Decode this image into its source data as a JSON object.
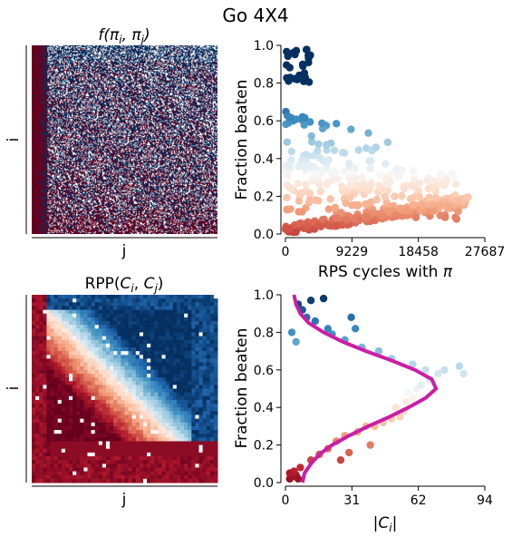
{
  "figure": {
    "title": "Go 4X4"
  },
  "palette": {
    "red": "#67001f",
    "blue": "#053061",
    "fit_curve": "#cc1da6",
    "mid": "#f7f7f7"
  },
  "chart_data": [
    {
      "id": "heatmap-f",
      "type": "heatmap",
      "title": "f(π_i, π_j)",
      "title_main": "f(",
      "title_a": "π",
      "title_a_sub": "i",
      "title_sep": ", ",
      "title_b": "π",
      "title_b_sub": "j",
      "title_end": ")",
      "xlabel": "j",
      "ylabel": "i",
      "grid_size": 200,
      "description_values": "binary win/loss matrix, red = loss, blue = win"
    },
    {
      "id": "scatter-rps",
      "type": "scatter",
      "xlabel": "RPS cycles with π",
      "xlabel_text": "RPS cycles with ",
      "xlabel_pi": "π",
      "ylabel": "Fraction beaten",
      "xlim": [
        0,
        27687
      ],
      "ylim": [
        0,
        1.0
      ],
      "xticks": [
        "0",
        "9229",
        "18458",
        "27687"
      ],
      "yticks": [
        "0.0",
        "0.2",
        "0.4",
        "0.6",
        "0.8",
        "1.0"
      ],
      "color_by": "fraction beaten",
      "n_points": 520
    },
    {
      "id": "heatmap-rpp",
      "type": "heatmap",
      "title": "RPP(C_i, C_j)",
      "title_main": "RPP(",
      "title_a": "C",
      "title_a_sub": "i",
      "title_sep": ", ",
      "title_b": "C",
      "title_b_sub": "j",
      "title_end": ")",
      "xlabel": "j",
      "ylabel": "i",
      "grid_size": 50
    },
    {
      "id": "scatter-ci",
      "type": "scatter",
      "xlabel": "|C_i|",
      "xlabel_text": "|C",
      "xlabel_sub": "i",
      "xlabel_end": "|",
      "ylabel": "Fraction beaten",
      "xlim": [
        0,
        94
      ],
      "ylim": [
        0,
        1.0
      ],
      "xticks": [
        "0",
        "31",
        "62",
        "94"
      ],
      "yticks": [
        "0.0",
        "0.2",
        "0.4",
        "0.6",
        "0.8",
        "1.0"
      ],
      "fit_curve": {
        "y": [
          0.0,
          0.05,
          0.1,
          0.15,
          0.2,
          0.25,
          0.3,
          0.35,
          0.4,
          0.45,
          0.5,
          0.55,
          0.6,
          0.65,
          0.7,
          0.75,
          0.8,
          0.85,
          0.9,
          0.95,
          1.0
        ],
        "x": [
          8,
          9,
          12,
          16,
          22,
          30,
          39,
          49,
          58,
          66,
          71,
          69,
          61,
          50,
          38,
          27,
          18,
          11,
          7,
          5,
          4
        ]
      },
      "points": [
        {
          "x": 2,
          "y": 0.02
        },
        {
          "x": 3,
          "y": 0.03
        },
        {
          "x": 5,
          "y": 0.04
        },
        {
          "x": 4,
          "y": 0.06
        },
        {
          "x": 2,
          "y": 0.05
        },
        {
          "x": 6,
          "y": 0.02
        },
        {
          "x": 7,
          "y": 0.08
        },
        {
          "x": 12,
          "y": 0.12
        },
        {
          "x": 16,
          "y": 0.15
        },
        {
          "x": 20,
          "y": 0.18
        },
        {
          "x": 24,
          "y": 0.22
        },
        {
          "x": 28,
          "y": 0.25
        },
        {
          "x": 34,
          "y": 0.27
        },
        {
          "x": 38,
          "y": 0.3
        },
        {
          "x": 42,
          "y": 0.3
        },
        {
          "x": 46,
          "y": 0.32
        },
        {
          "x": 50,
          "y": 0.34
        },
        {
          "x": 54,
          "y": 0.35
        },
        {
          "x": 56,
          "y": 0.38
        },
        {
          "x": 52,
          "y": 0.4
        },
        {
          "x": 57,
          "y": 0.43
        },
        {
          "x": 60,
          "y": 0.45
        },
        {
          "x": 62,
          "y": 0.5
        },
        {
          "x": 58,
          "y": 0.48
        },
        {
          "x": 64,
          "y": 0.52
        },
        {
          "x": 68,
          "y": 0.55
        },
        {
          "x": 72,
          "y": 0.58
        },
        {
          "x": 75,
          "y": 0.6
        },
        {
          "x": 82,
          "y": 0.62
        },
        {
          "x": 84,
          "y": 0.58
        },
        {
          "x": 66,
          "y": 0.6
        },
        {
          "x": 60,
          "y": 0.63
        },
        {
          "x": 50,
          "y": 0.66
        },
        {
          "x": 44,
          "y": 0.7
        },
        {
          "x": 36,
          "y": 0.72
        },
        {
          "x": 28,
          "y": 0.76
        },
        {
          "x": 22,
          "y": 0.79
        },
        {
          "x": 20,
          "y": 0.82
        },
        {
          "x": 14,
          "y": 0.86
        },
        {
          "x": 10,
          "y": 0.88
        },
        {
          "x": 8,
          "y": 0.92
        },
        {
          "x": 6,
          "y": 0.95
        },
        {
          "x": 12,
          "y": 0.97
        },
        {
          "x": 18,
          "y": 0.98
        },
        {
          "x": 3,
          "y": 0.8
        },
        {
          "x": 5,
          "y": 0.75
        },
        {
          "x": 31,
          "y": 0.88
        },
        {
          "x": 33,
          "y": 0.82
        },
        {
          "x": 26,
          "y": 0.12
        },
        {
          "x": 40,
          "y": 0.2
        },
        {
          "x": 30,
          "y": 0.16
        }
      ]
    }
  ]
}
